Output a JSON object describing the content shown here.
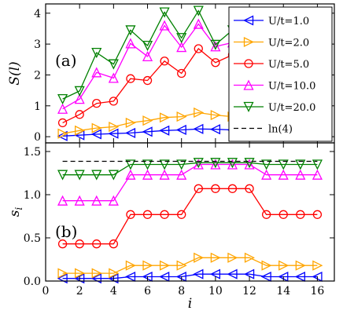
{
  "chart_data": [
    {
      "type": "line",
      "panel_label": "(a)",
      "xlabel": "",
      "ylabel": "S(l)",
      "x": [
        1,
        2,
        3,
        4,
        5,
        6,
        7,
        8,
        9,
        10,
        11,
        12,
        13,
        14,
        15,
        16
      ],
      "xlim": [
        0,
        17
      ],
      "ylim": [
        -0.2,
        4.3
      ],
      "xticks": [
        2,
        4,
        6,
        8,
        10,
        12,
        14,
        16
      ],
      "yticks": [
        0,
        1,
        2,
        3,
        4
      ],
      "grid": false,
      "legend_position": "top-right",
      "series": [
        {
          "name": "U/t=1.0",
          "color": "#0000ff",
          "marker": "triangle-left",
          "values": [
            0.02,
            0.05,
            0.08,
            0.1,
            0.12,
            0.16,
            0.2,
            0.22,
            0.25,
            0.24,
            0.22,
            0.2,
            0.18,
            0.14,
            0.1,
            0.06
          ]
        },
        {
          "name": "U/t=2.0",
          "color": "#ffa500",
          "marker": "triangle-right",
          "values": [
            0.1,
            0.2,
            0.28,
            0.32,
            0.45,
            0.52,
            0.62,
            0.65,
            0.78,
            0.7,
            0.65,
            0.55,
            0.48,
            0.35,
            0.25,
            0.15
          ]
        },
        {
          "name": "U/t=5.0",
          "color": "#ff0000",
          "marker": "circle",
          "values": [
            0.45,
            0.72,
            1.08,
            1.15,
            1.88,
            1.82,
            2.45,
            2.05,
            2.85,
            2.4,
            2.65,
            2.2,
            2.1,
            1.8,
            1.4,
            0.9
          ]
        },
        {
          "name": "U/t=10.0",
          "color": "#ff00ff",
          "marker": "triangle-up",
          "values": [
            0.9,
            1.22,
            2.08,
            1.9,
            3.02,
            2.6,
            3.6,
            2.9,
            3.65,
            2.92,
            3.05,
            2.65,
            2.5,
            2.1,
            1.7,
            1.2
          ]
        },
        {
          "name": "U/t=20.0",
          "color": "#008000",
          "marker": "triangle-down",
          "values": [
            1.22,
            1.48,
            2.72,
            2.35,
            3.45,
            2.95,
            4.03,
            3.2,
            4.08,
            2.98,
            3.45,
            3.0,
            2.9,
            2.4,
            1.9,
            1.35
          ]
        }
      ]
    },
    {
      "type": "line",
      "panel_label": "(b)",
      "xlabel": "i",
      "ylabel": "s_i",
      "ylabel_main": "s",
      "ylabel_sub": "i",
      "x": [
        1,
        2,
        3,
        4,
        5,
        6,
        7,
        8,
        9,
        10,
        11,
        12,
        13,
        14,
        15,
        16
      ],
      "xlim": [
        0,
        17
      ],
      "ylim": [
        0,
        1.6
      ],
      "xticks": [
        0,
        2,
        4,
        6,
        8,
        10,
        12,
        14,
        16
      ],
      "yticks": [
        0.0,
        0.5,
        1.0,
        1.5
      ],
      "ytick_labels": [
        "0.0",
        "0.5",
        "1.0",
        "1.5"
      ],
      "grid": false,
      "series": [
        {
          "name": "U/t=1.0",
          "color": "#0000ff",
          "marker": "triangle-left",
          "values": [
            0.03,
            0.03,
            0.03,
            0.03,
            0.05,
            0.05,
            0.05,
            0.05,
            0.08,
            0.08,
            0.08,
            0.08,
            0.05,
            0.05,
            0.05,
            0.05
          ]
        },
        {
          "name": "U/t=2.0",
          "color": "#ffa500",
          "marker": "triangle-right",
          "values": [
            0.09,
            0.09,
            0.09,
            0.09,
            0.18,
            0.18,
            0.18,
            0.18,
            0.27,
            0.27,
            0.27,
            0.27,
            0.18,
            0.18,
            0.18,
            0.18
          ]
        },
        {
          "name": "U/t=5.0",
          "color": "#ff0000",
          "marker": "circle",
          "values": [
            0.43,
            0.43,
            0.43,
            0.43,
            0.77,
            0.77,
            0.77,
            0.77,
            1.07,
            1.07,
            1.07,
            1.07,
            0.77,
            0.77,
            0.77,
            0.77
          ]
        },
        {
          "name": "U/t=10.0",
          "color": "#ff00ff",
          "marker": "triangle-up",
          "values": [
            0.93,
            0.93,
            0.93,
            0.93,
            1.23,
            1.23,
            1.23,
            1.23,
            1.35,
            1.35,
            1.35,
            1.35,
            1.23,
            1.23,
            1.23,
            1.23
          ]
        },
        {
          "name": "U/t=20.0",
          "color": "#008000",
          "marker": "triangle-down",
          "values": [
            1.23,
            1.23,
            1.23,
            1.23,
            1.35,
            1.35,
            1.35,
            1.35,
            1.37,
            1.37,
            1.37,
            1.37,
            1.35,
            1.35,
            1.35,
            1.35
          ]
        },
        {
          "name": "ln(4)",
          "color": "#000000",
          "dashed": true,
          "values": [
            1.386,
            1.386,
            1.386,
            1.386,
            1.386,
            1.386,
            1.386,
            1.386,
            1.386,
            1.386,
            1.386,
            1.386,
            1.386,
            1.386,
            1.386,
            1.386
          ]
        }
      ]
    }
  ]
}
